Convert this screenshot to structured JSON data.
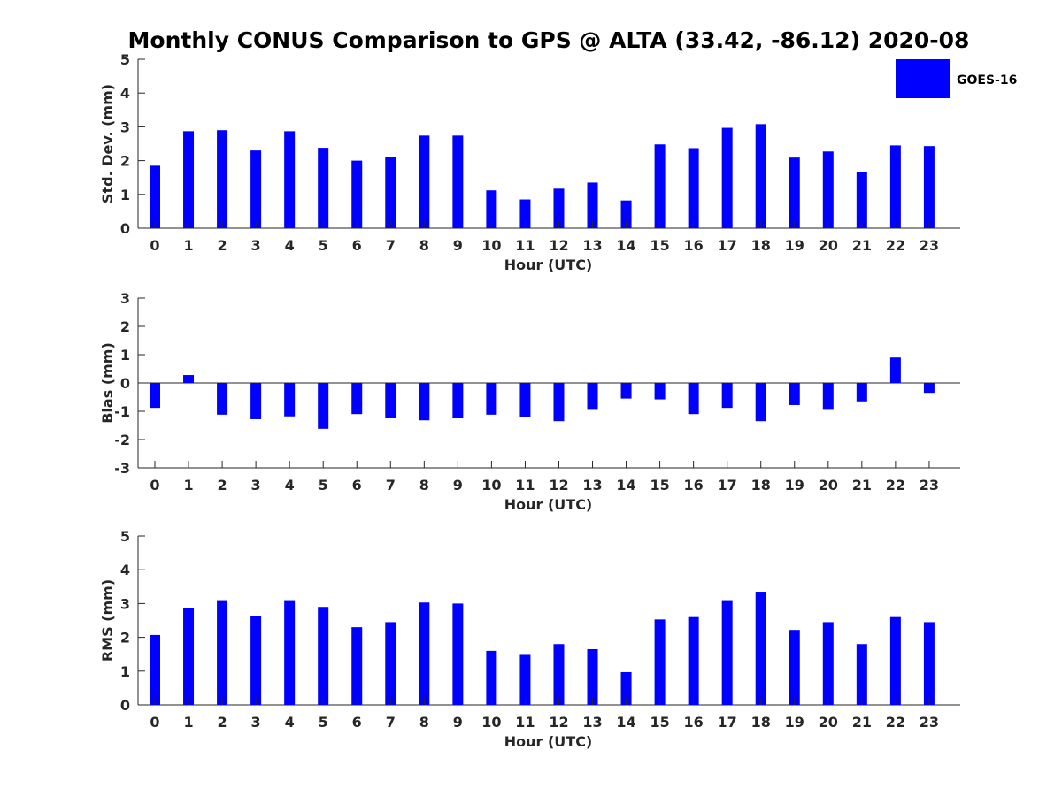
{
  "figure": {
    "title": "Monthly CONUS Comparison to GPS @ ALTA (33.42, -86.12) 2020-08",
    "legend": {
      "label": "GOES-16",
      "color": "#0000ff",
      "placement": "top-right"
    }
  },
  "chart_data": [
    {
      "type": "bar",
      "name": "std-dev",
      "series_name": "GOES-16",
      "color": "#0000ff",
      "xlabel": "Hour (UTC)",
      "ylabel": "Std. Dev. (mm)",
      "ylim": [
        0,
        5
      ],
      "yticks": [
        0,
        1,
        2,
        3,
        4,
        5
      ],
      "categories": [
        "0",
        "1",
        "2",
        "3",
        "4",
        "5",
        "6",
        "7",
        "8",
        "9",
        "10",
        "11",
        "12",
        "13",
        "14",
        "15",
        "16",
        "17",
        "18",
        "19",
        "20",
        "21",
        "22",
        "23"
      ],
      "values": [
        1.85,
        2.87,
        2.9,
        2.3,
        2.87,
        2.38,
        2.0,
        2.12,
        2.74,
        2.74,
        1.12,
        0.85,
        1.17,
        1.35,
        0.82,
        2.48,
        2.37,
        2.97,
        3.08,
        2.09,
        2.27,
        1.67,
        2.45,
        2.43
      ]
    },
    {
      "type": "bar",
      "name": "bias",
      "series_name": "GOES-16",
      "color": "#0000ff",
      "xlabel": "Hour (UTC)",
      "ylabel": "Bias (mm)",
      "ylim": [
        -3,
        3
      ],
      "yticks": [
        -3,
        -2,
        -1,
        0,
        1,
        2,
        3
      ],
      "categories": [
        "0",
        "1",
        "2",
        "3",
        "4",
        "5",
        "6",
        "7",
        "8",
        "9",
        "10",
        "11",
        "12",
        "13",
        "14",
        "15",
        "16",
        "17",
        "18",
        "19",
        "20",
        "21",
        "22",
        "23"
      ],
      "values": [
        -0.88,
        0.28,
        -1.12,
        -1.28,
        -1.18,
        -1.62,
        -1.1,
        -1.25,
        -1.32,
        -1.25,
        -1.12,
        -1.2,
        -1.35,
        -0.95,
        -0.55,
        -0.58,
        -1.1,
        -0.88,
        -1.35,
        -0.78,
        -0.95,
        -0.65,
        0.9,
        -0.35
      ]
    },
    {
      "type": "bar",
      "name": "rms",
      "series_name": "GOES-16",
      "color": "#0000ff",
      "xlabel": "Hour (UTC)",
      "ylabel": "RMS (mm)",
      "ylim": [
        0,
        5
      ],
      "yticks": [
        0,
        1,
        2,
        3,
        4,
        5
      ],
      "categories": [
        "0",
        "1",
        "2",
        "3",
        "4",
        "5",
        "6",
        "7",
        "8",
        "9",
        "10",
        "11",
        "12",
        "13",
        "14",
        "15",
        "16",
        "17",
        "18",
        "19",
        "20",
        "21",
        "22",
        "23"
      ],
      "values": [
        2.07,
        2.87,
        3.1,
        2.63,
        3.1,
        2.9,
        2.3,
        2.45,
        3.03,
        3.0,
        1.6,
        1.48,
        1.8,
        1.65,
        0.97,
        2.53,
        2.6,
        3.1,
        3.35,
        2.22,
        2.45,
        1.8,
        2.6,
        2.45
      ]
    }
  ]
}
